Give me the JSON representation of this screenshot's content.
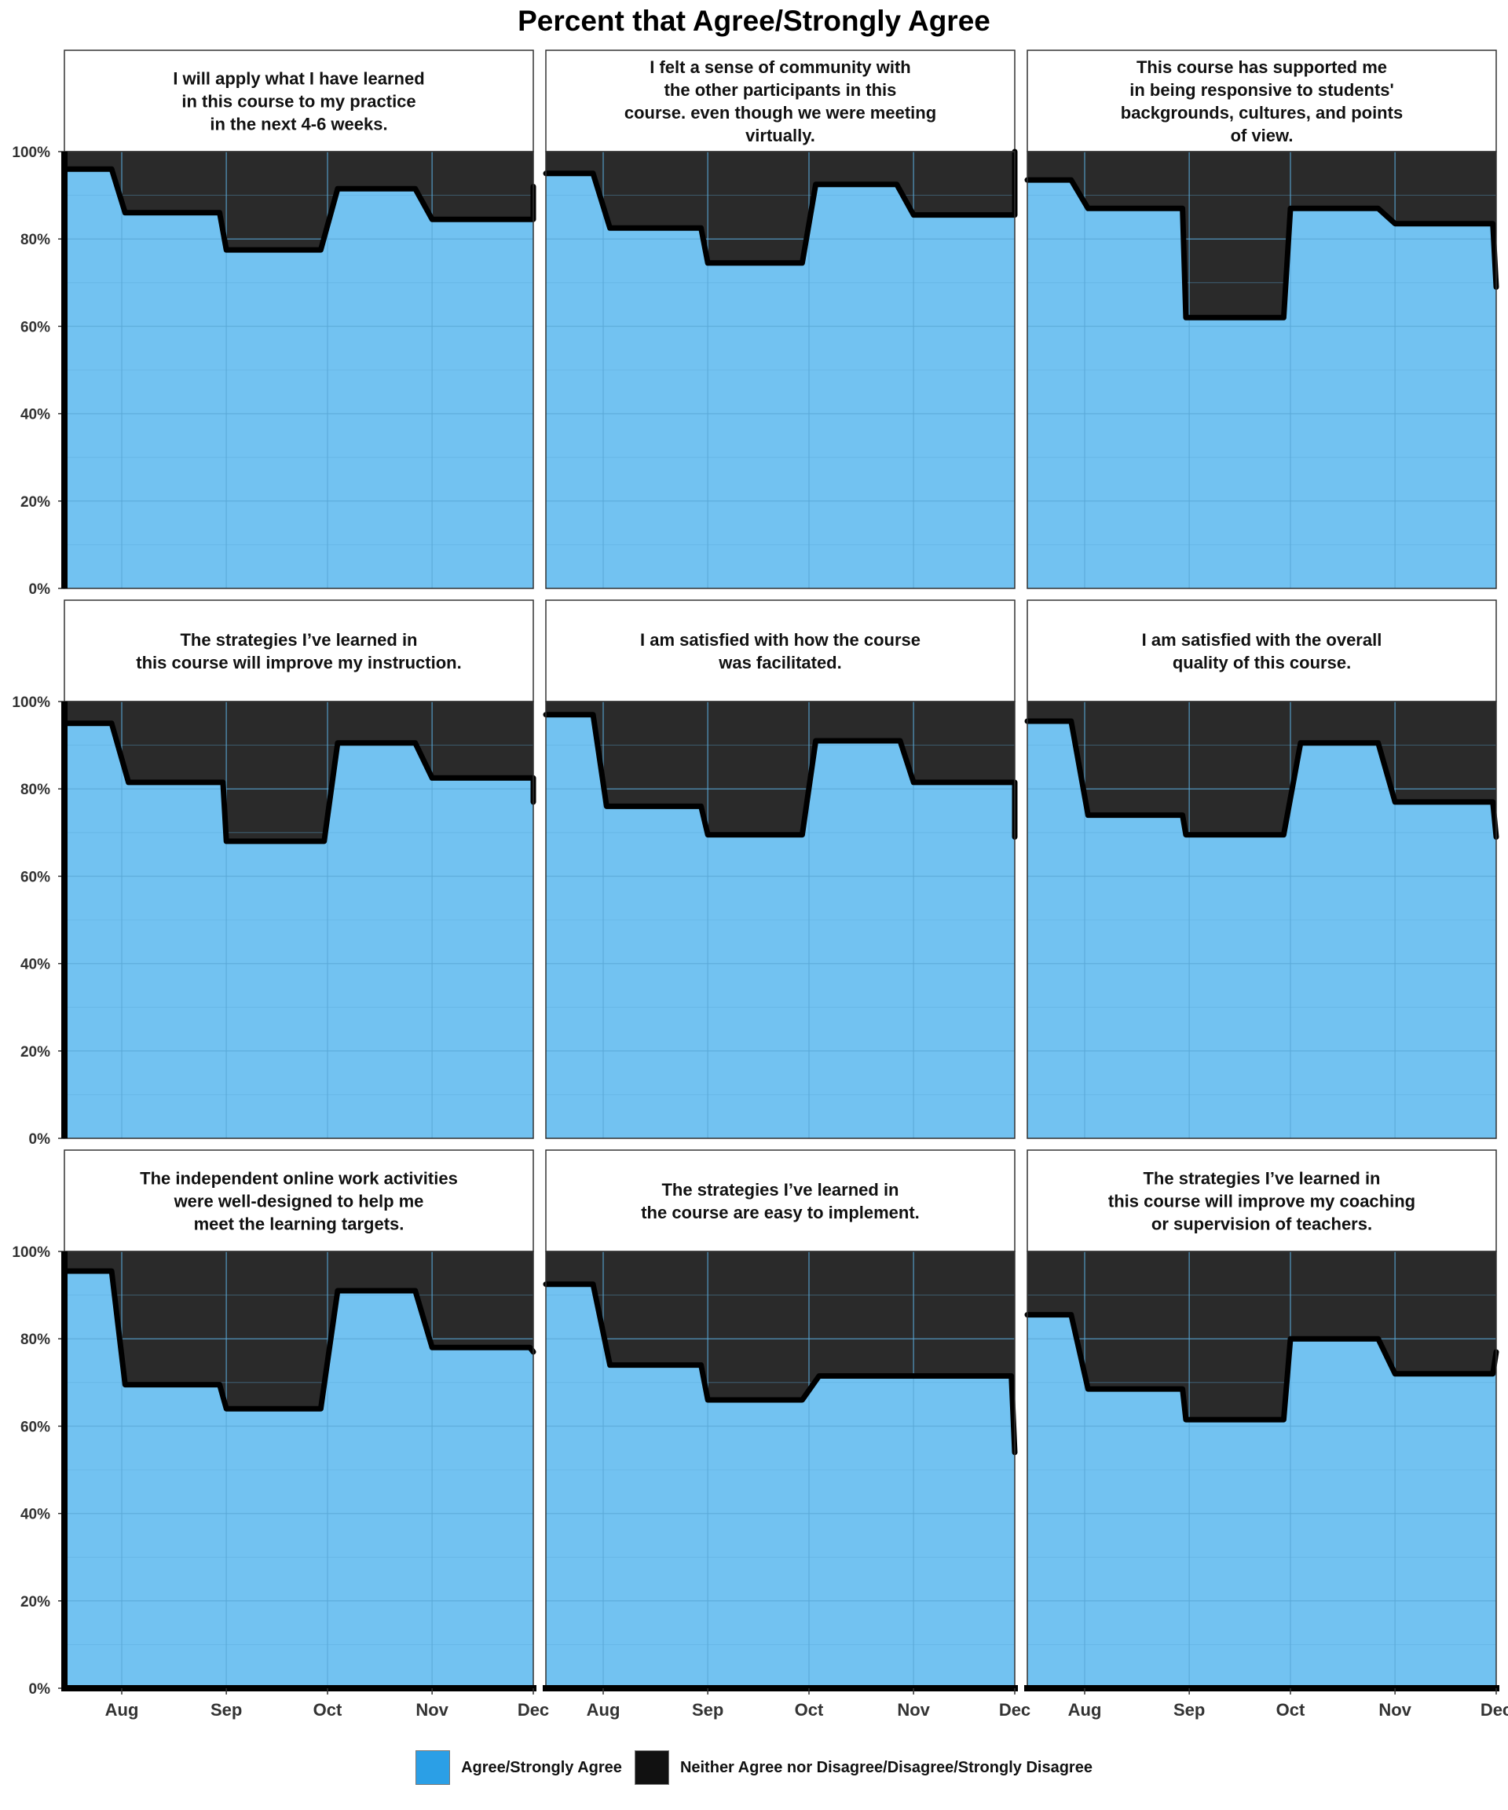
{
  "title": "Percent that Agree/Strongly Agree",
  "colors": {
    "agree": "#72c2f1",
    "disagree": "#2a2a2a",
    "legend_agree": "#2b9fe6",
    "legend_disagree": "#111111",
    "line": "#000000"
  },
  "legend": [
    {
      "label": "Agree/Strongly Agree",
      "color_key": "legend_agree"
    },
    {
      "label": "Neither Agree nor Disagree/Disagree/Strongly Disagree",
      "color_key": "legend_disagree"
    }
  ],
  "chart_data": {
    "type": "area",
    "stacked": true,
    "y_ticks": [
      "0%",
      "20%",
      "40%",
      "60%",
      "80%",
      "100%"
    ],
    "ylim": [
      0,
      100
    ],
    "x_ticks": [
      "Aug",
      "Sep",
      "Oct",
      "Nov",
      "Dec"
    ],
    "xlim": [
      "2021-07-15",
      "2021-12-01"
    ],
    "series": [
      {
        "name": "Agree/Strongly Agree"
      },
      {
        "name": "Neither Agree nor Disagree/Disagree/Strongly Disagree"
      }
    ],
    "panels": [
      {
        "strip": [
          "I will apply what I have learned",
          "in this course to my practice",
          "in the next 4-6 weeks."
        ],
        "x": [
          "2021-07-15",
          "2021-07-29",
          "2021-08-02",
          "2021-08-30",
          "2021-09-01",
          "2021-09-29",
          "2021-10-04",
          "2021-10-27",
          "2021-11-01",
          "2021-12-01",
          "2021-12-01"
        ],
        "y": [
          96,
          96,
          86,
          86,
          77.5,
          77.5,
          91.5,
          91.5,
          84.5,
          84.5,
          92
        ]
      },
      {
        "strip": [
          "I felt a sense of community with",
          "the other participants in this",
          "course. even though we were meeting",
          "virtually."
        ],
        "x": [
          "2021-07-15",
          "2021-07-29",
          "2021-08-03",
          "2021-08-30",
          "2021-09-01",
          "2021-09-29",
          "2021-10-03",
          "2021-10-27",
          "2021-11-01",
          "2021-12-01",
          "2021-12-01"
        ],
        "y": [
          95,
          95,
          82.5,
          82.5,
          74.5,
          74.5,
          92.5,
          92.5,
          85.5,
          85.5,
          100
        ]
      },
      {
        "strip": [
          "This course has supported me",
          "in being responsive to students'",
          "backgrounds, cultures, and points",
          "of view."
        ],
        "x": [
          "2021-07-15",
          "2021-07-28",
          "2021-08-02",
          "2021-08-30",
          "2021-08-31",
          "2021-09-29",
          "2021-10-01",
          "2021-10-27",
          "2021-11-01",
          "2021-11-30",
          "2021-12-01"
        ],
        "y": [
          93.5,
          93.5,
          87,
          87,
          62,
          62,
          87,
          87,
          83.5,
          83.5,
          69
        ]
      },
      {
        "strip": [
          "The strategies I’ve learned in",
          "this course will improve my instruction."
        ],
        "x": [
          "2021-07-15",
          "2021-07-29",
          "2021-08-03",
          "2021-08-31",
          "2021-09-01",
          "2021-09-30",
          "2021-10-04",
          "2021-10-27",
          "2021-11-01",
          "2021-12-01",
          "2021-12-01"
        ],
        "y": [
          95,
          95,
          81.5,
          81.5,
          68,
          68,
          90.5,
          90.5,
          82.5,
          82.5,
          77
        ]
      },
      {
        "strip": [
          "I am satisfied with how the course",
          "was facilitated."
        ],
        "x": [
          "2021-07-15",
          "2021-07-29",
          "2021-08-02",
          "2021-08-30",
          "2021-09-01",
          "2021-09-29",
          "2021-10-03",
          "2021-10-28",
          "2021-11-01",
          "2021-12-01",
          "2021-12-01"
        ],
        "y": [
          97,
          97,
          76,
          76,
          69.5,
          69.5,
          91,
          91,
          81.5,
          81.5,
          69
        ]
      },
      {
        "strip": [
          "I am satisfied with the overall",
          "quality of this course."
        ],
        "x": [
          "2021-07-15",
          "2021-07-28",
          "2021-08-02",
          "2021-08-30",
          "2021-08-31",
          "2021-09-29",
          "2021-10-04",
          "2021-10-27",
          "2021-11-01",
          "2021-11-30",
          "2021-12-01"
        ],
        "y": [
          95.5,
          95.5,
          74,
          74,
          69.5,
          69.5,
          90.5,
          90.5,
          77,
          77,
          69
        ]
      },
      {
        "strip": [
          "The independent online work activities",
          "were well-designed to help me",
          "meet the learning targets."
        ],
        "x": [
          "2021-07-15",
          "2021-07-29",
          "2021-08-02",
          "2021-08-30",
          "2021-09-01",
          "2021-09-29",
          "2021-10-04",
          "2021-10-27",
          "2021-11-01",
          "2021-11-30",
          "2021-12-01"
        ],
        "y": [
          95.5,
          95.5,
          69.5,
          69.5,
          64,
          64,
          91,
          91,
          78,
          78,
          77
        ]
      },
      {
        "strip": [
          "The strategies I’ve learned in",
          "the course are easy to implement."
        ],
        "x": [
          "2021-07-15",
          "2021-07-29",
          "2021-08-03",
          "2021-08-30",
          "2021-09-01",
          "2021-09-29",
          "2021-10-04",
          "2021-10-28",
          "2021-11-01",
          "2021-11-30",
          "2021-12-01"
        ],
        "y": [
          92.5,
          92.5,
          74,
          74,
          66,
          66,
          71.5,
          71.5,
          71.5,
          71.5,
          54
        ]
      },
      {
        "strip": [
          "The strategies I’ve learned in",
          "this course will improve my coaching",
          "or supervision of teachers."
        ],
        "x": [
          "2021-07-15",
          "2021-07-28",
          "2021-08-02",
          "2021-08-30",
          "2021-08-31",
          "2021-09-29",
          "2021-10-01",
          "2021-10-27",
          "2021-11-01",
          "2021-11-30",
          "2021-12-01"
        ],
        "y": [
          85.5,
          85.5,
          68.5,
          68.5,
          61.5,
          61.5,
          80,
          80,
          72,
          72,
          77
        ]
      }
    ]
  }
}
